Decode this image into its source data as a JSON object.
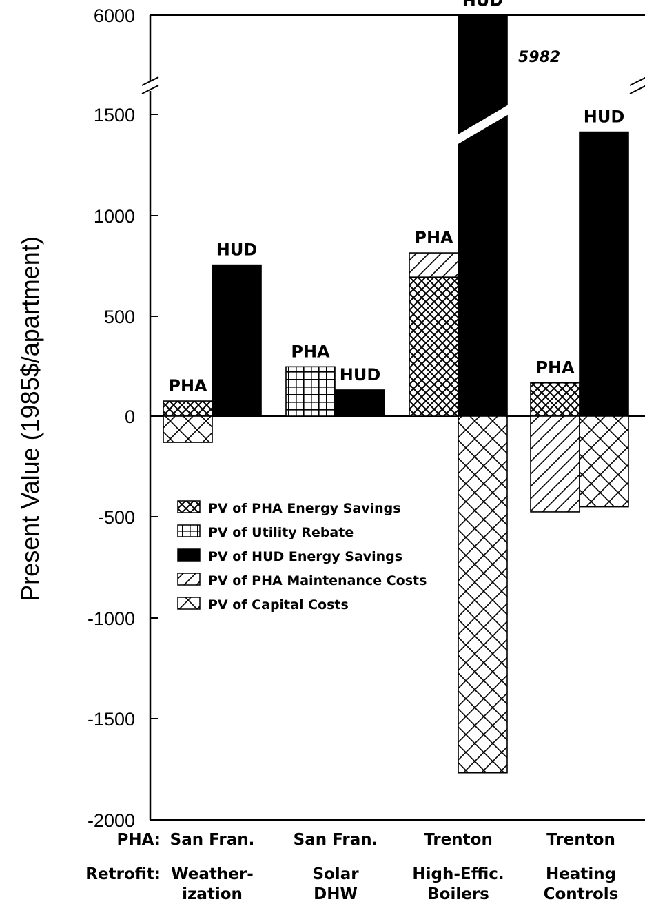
{
  "chart_data": {
    "type": "bar",
    "stacked": true,
    "ylabel": "Present Value (1985$/apartment)",
    "ylim": [
      -2000,
      6000
    ],
    "axis_break": {
      "from": 1600,
      "to": 5900
    },
    "yticks": [
      "6000",
      "1500",
      "1000",
      "500",
      "0",
      "-500",
      "-1000",
      "-1500",
      "-2000"
    ],
    "row_labels": {
      "pha": "PHA:",
      "retrofit": "Retrofit:"
    },
    "groups": [
      {
        "pha": "San Fran.",
        "retrofit_line1": "Weather-",
        "retrofit_line2": "ization"
      },
      {
        "pha": "San Fran.",
        "retrofit_line1": "Solar",
        "retrofit_line2": "DHW"
      },
      {
        "pha": "Trenton",
        "retrofit_line1": "High-Effic.",
        "retrofit_line2": "Boilers"
      },
      {
        "pha": "Trenton",
        "retrofit_line1": "Heating",
        "retrofit_line2": "Controls"
      }
    ],
    "bars": [
      {
        "group": 0,
        "label": "PHA",
        "segments": [
          {
            "series": "PV of PHA Energy Savings",
            "value": 75
          },
          {
            "series": "PV of Capital Costs",
            "value": -130
          }
        ]
      },
      {
        "group": 0,
        "label": "HUD",
        "segments": [
          {
            "series": "PV of HUD Energy Savings",
            "value": 750
          }
        ]
      },
      {
        "group": 1,
        "label": "PHA",
        "segments": [
          {
            "series": "PV of Utility Rebate",
            "value": 245
          }
        ]
      },
      {
        "group": 1,
        "label": "HUD",
        "segments": [
          {
            "series": "PV of HUD Energy Savings",
            "value": 130
          }
        ]
      },
      {
        "group": 2,
        "label": "PHA",
        "segments": [
          {
            "series": "PV of PHA Energy Savings",
            "value": 690
          },
          {
            "series": "PV of PHA Maintenance Costs",
            "value": 120
          }
        ]
      },
      {
        "group": 2,
        "label": "HUD",
        "value_label": "5982",
        "segments": [
          {
            "series": "PV of HUD Energy Savings",
            "value": 5982
          },
          {
            "series": "PV of Capital Costs",
            "value": -1770
          }
        ]
      },
      {
        "group": 3,
        "label": "PHA",
        "segments": [
          {
            "series": "PV of PHA Energy Savings",
            "value": 165
          },
          {
            "series": "PV of PHA Maintenance Costs",
            "value": -475
          }
        ]
      },
      {
        "group": 3,
        "label": "HUD",
        "segments": [
          {
            "series": "PV of HUD Energy Savings",
            "value": 1410
          },
          {
            "series": "PV of Capital Costs",
            "value": -450
          }
        ]
      }
    ],
    "series": [
      {
        "name": "PV of PHA Energy Savings",
        "pattern": "crosshatch-dense"
      },
      {
        "name": "PV of Utility Rebate",
        "pattern": "grid"
      },
      {
        "name": "PV of HUD Energy Savings",
        "pattern": "solid-black"
      },
      {
        "name": "PV of PHA Maintenance Costs",
        "pattern": "diagonal"
      },
      {
        "name": "PV of Capital Costs",
        "pattern": "crosshatch-wide"
      }
    ],
    "legend_position": "left-center",
    "grid": false,
    "colors": {
      "ink": "#000000",
      "background": "#ffffff"
    }
  }
}
